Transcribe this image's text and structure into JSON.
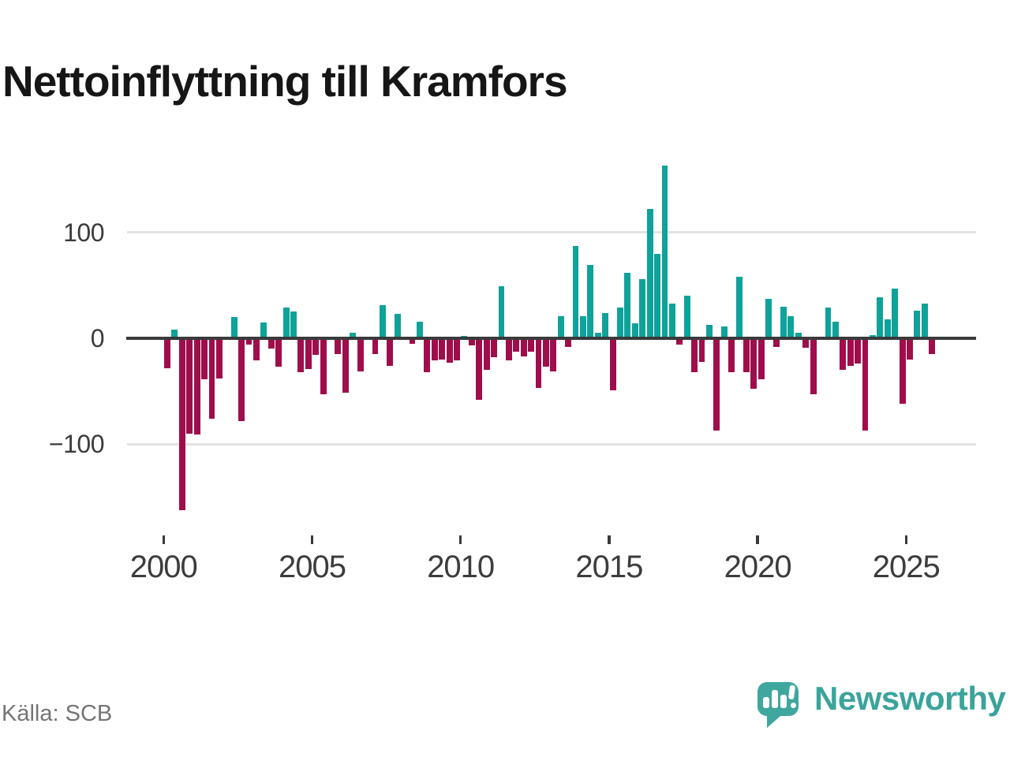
{
  "title": "Nettoinflyttning till Kramfors",
  "source": "Källa: SCB",
  "branding": {
    "logo_text": "Newsworthy",
    "logo_icon": "bar-chart-speech-bubble-icon",
    "logo_color": "#3fa79d"
  },
  "chart_data": {
    "type": "bar",
    "title": "Nettoinflyttning till Kramfors",
    "frequency": "quarterly",
    "start": "2000 Q1",
    "end": "2025 Q4",
    "positive_color": "#0ea29a",
    "negative_color": "#a00d4b",
    "grid_on": true,
    "legend": "none",
    "ylim": [
      -175,
      180
    ],
    "y_ticks": [
      {
        "label": "100",
        "value": 100
      },
      {
        "label": "0",
        "value": 0
      },
      {
        "label": "−100",
        "value": -100
      }
    ],
    "x_tick_labels": [
      "2000",
      "2005",
      "2010",
      "2015",
      "2020",
      "2025"
    ],
    "categories": [
      "2000 Q1",
      "2000 Q2",
      "2000 Q3",
      "2000 Q4",
      "2001 Q1",
      "2001 Q2",
      "2001 Q3",
      "2001 Q4",
      "2002 Q1",
      "2002 Q2",
      "2002 Q3",
      "2002 Q4",
      "2003 Q1",
      "2003 Q2",
      "2003 Q3",
      "2003 Q4",
      "2004 Q1",
      "2004 Q2",
      "2004 Q3",
      "2004 Q4",
      "2005 Q1",
      "2005 Q2",
      "2005 Q3",
      "2005 Q4",
      "2006 Q1",
      "2006 Q2",
      "2006 Q3",
      "2006 Q4",
      "2007 Q1",
      "2007 Q2",
      "2007 Q3",
      "2007 Q4",
      "2008 Q1",
      "2008 Q2",
      "2008 Q3",
      "2008 Q4",
      "2009 Q1",
      "2009 Q2",
      "2009 Q3",
      "2009 Q4",
      "2010 Q1",
      "2010 Q2",
      "2010 Q3",
      "2010 Q4",
      "2011 Q1",
      "2011 Q2",
      "2011 Q3",
      "2011 Q4",
      "2012 Q1",
      "2012 Q2",
      "2012 Q3",
      "2012 Q4",
      "2013 Q1",
      "2013 Q2",
      "2013 Q3",
      "2013 Q4",
      "2014 Q1",
      "2014 Q2",
      "2014 Q3",
      "2014 Q4",
      "2015 Q1",
      "2015 Q2",
      "2015 Q3",
      "2015 Q4",
      "2016 Q1",
      "2016 Q2",
      "2016 Q3",
      "2016 Q4",
      "2017 Q1",
      "2017 Q2",
      "2017 Q3",
      "2017 Q4",
      "2018 Q1",
      "2018 Q2",
      "2018 Q3",
      "2018 Q4",
      "2019 Q1",
      "2019 Q2",
      "2019 Q3",
      "2019 Q4",
      "2020 Q1",
      "2020 Q2",
      "2020 Q3",
      "2020 Q4",
      "2021 Q1",
      "2021 Q2",
      "2021 Q3",
      "2021 Q4",
      "2022 Q1",
      "2022 Q2",
      "2022 Q3",
      "2022 Q4",
      "2023 Q1",
      "2023 Q2",
      "2023 Q3",
      "2023 Q4",
      "2024 Q1",
      "2024 Q2",
      "2024 Q3",
      "2024 Q4",
      "2025 Q1",
      "2025 Q2",
      "2025 Q3",
      "2025 Q4"
    ],
    "values": [
      -28,
      8,
      -162,
      -90,
      -91,
      -39,
      -76,
      -38,
      0,
      20,
      -78,
      -6,
      -21,
      15,
      -10,
      -27,
      29,
      25,
      -32,
      -29,
      -16,
      -53,
      0,
      -15,
      -51,
      5,
      -31,
      0,
      -15,
      31,
      -26,
      23,
      0,
      -5,
      16,
      -32,
      -21,
      -20,
      -23,
      -21,
      2,
      -7,
      -58,
      -30,
      -18,
      49,
      -21,
      -13,
      -17,
      -13,
      -47,
      -27,
      -31,
      21,
      -8,
      87,
      21,
      69,
      5,
      24,
      -49,
      29,
      62,
      14,
      56,
      122,
      80,
      163,
      33,
      -6,
      40,
      -32,
      -22,
      13,
      -87,
      11,
      -32,
      58,
      -32,
      -48,
      -39,
      37,
      -8,
      30,
      21,
      5,
      -9,
      -53,
      0,
      29,
      16,
      -30,
      -26,
      -24,
      -87,
      3,
      39,
      18,
      47,
      -62,
      -20,
      26,
      33,
      -15
    ]
  }
}
